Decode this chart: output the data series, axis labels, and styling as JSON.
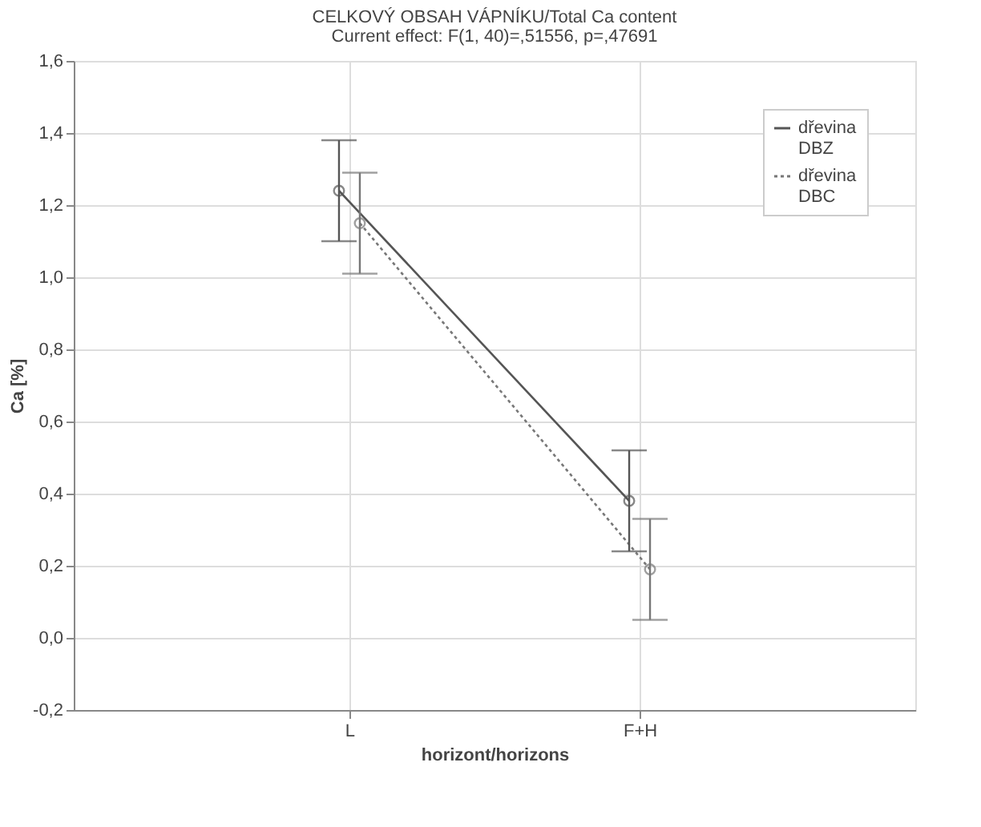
{
  "chart_data": {
    "type": "line",
    "title": "CELKOVÝ OBSAH VÁPNÍKU/Total Ca content",
    "subtitle": "Current effect: F(1, 40)=,51556, p=,47691",
    "xlabel": "horizont/horizons",
    "ylabel": "Ca [%]",
    "categories": [
      "L",
      "F+H"
    ],
    "series": [
      {
        "name": "dřevina DBZ",
        "color": "#555555",
        "line_style": "solid",
        "values": [
          1.24,
          0.38
        ],
        "errors": [
          [
            1.1,
            1.38
          ],
          [
            0.24,
            0.52
          ]
        ]
      },
      {
        "name": "dřevina DBC",
        "color": "#777777",
        "line_style": "dotted",
        "values": [
          1.15,
          0.19
        ],
        "errors": [
          [
            1.01,
            1.29
          ],
          [
            0.05,
            0.33
          ]
        ]
      }
    ],
    "ylim": [
      -0.2,
      1.6
    ],
    "yticks": [
      {
        "value": -0.2,
        "label": "-0,2"
      },
      {
        "value": 0,
        "label": "0,0"
      },
      {
        "value": 0.2,
        "label": "0,2"
      },
      {
        "value": 0.4,
        "label": "0,4"
      },
      {
        "value": 0.6,
        "label": "0,6"
      },
      {
        "value": 0.8,
        "label": "0,8"
      },
      {
        "value": 1.0,
        "label": "1,0"
      },
      {
        "value": 1.2,
        "label": "1,2"
      },
      {
        "value": 1.4,
        "label": "1,4"
      },
      {
        "value": 1.6,
        "label": "1,6"
      }
    ],
    "grid": true,
    "legend": "top right",
    "marker": "circle"
  }
}
